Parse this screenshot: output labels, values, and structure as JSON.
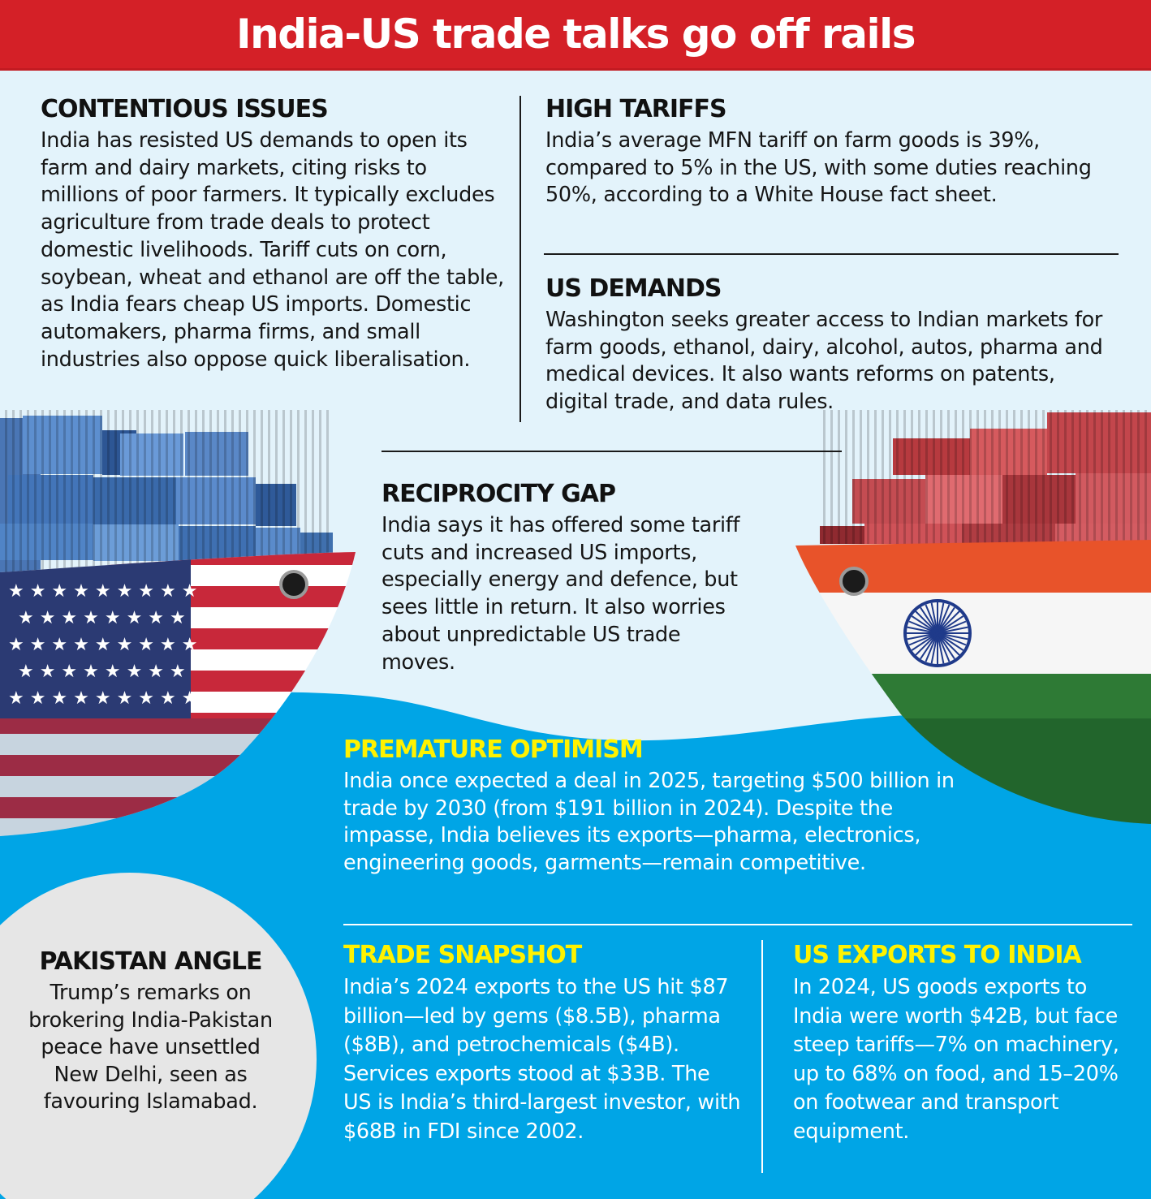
{
  "title": "India-US trade talks go off rails",
  "sections": {
    "contentious": {
      "heading": "CONTENTIOUS ISSUES",
      "body": "India has resisted US demands to open its farm and dairy markets, citing risks to millions of poor farmers. It typically excludes agriculture from trade deals to protect domestic livelihoods. Tariff cuts on corn, soybean, wheat and ethanol are off the table, as India fears cheap US imports. Domestic automakers, pharma firms, and small industries also oppose quick liberalisation."
    },
    "high_tariffs": {
      "heading": "HIGH TARIFFS",
      "body": "India’s average MFN tariff on farm goods is 39%, compared to 5% in the US, with some duties reaching 50%, according to a White House fact sheet."
    },
    "us_demands": {
      "heading": "US DEMANDS",
      "body": "Washington seeks greater access to Indian markets for farm goods, ethanol, dairy, alcohol, autos, pharma and medical devices. It also wants reforms on patents, digital trade, and data rules."
    },
    "reciprocity": {
      "heading": "RECIPROCITY GAP",
      "body": "India says it has offered some tariff cuts and increased US imports, especially energy and defence, but sees little in return. It also worries about unpredictable US trade moves."
    },
    "optimism": {
      "heading": "PREMATURE OPTIMISM",
      "body": "India once expected a deal in 2025, targeting $500 billion in trade by 2030 (from $191 billion in 2024). Despite the impasse, India believes its exports—pharma, electronics, engineering goods, garments—remain competitive."
    },
    "snapshot": {
      "heading": "TRADE SNAPSHOT",
      "body": "India’s 2024 exports to the US hit $87 billion—led by gems ($8.5B), pharma ($8B), and petrochemicals ($4B). Services exports stood at $33B. The US is India’s third-largest investor, with $68B in FDI since 2002."
    },
    "us_exports": {
      "heading": "US EXPORTS TO INDIA",
      "body": "In 2024, US goods exports to India were worth $42B, but face steep tariffs—7% on machinery, up to 68% on food, and 15–20% on footwear and transport equipment."
    },
    "pakistan": {
      "heading": "PAKISTAN ANGLE",
      "body": "Trump’s remarks on brokering India-Pakistan peace have unsettled New Delhi, seen as favouring Islamabad."
    }
  },
  "colors": {
    "banner": "#d42027",
    "sky": "#e3f3fb",
    "sea": "#00a5e6",
    "accent_heading": "#fff200"
  },
  "illustrations": [
    "us-flag-cargo-ship",
    "india-flag-cargo-ship"
  ]
}
